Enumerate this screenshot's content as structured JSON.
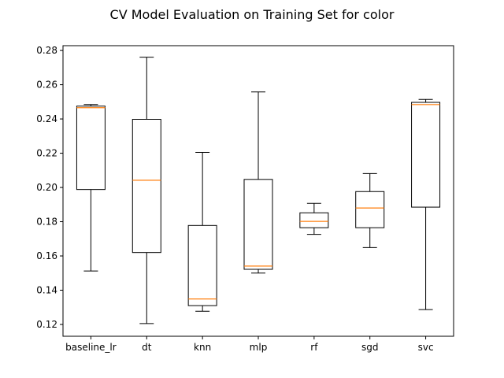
{
  "chart_data": {
    "type": "box",
    "title": "CV Model Evaluation on Training Set for color",
    "xlabel": "",
    "ylabel": "",
    "categories": [
      "baseline_lr",
      "dt",
      "knn",
      "mlp",
      "rf",
      "sgd",
      "svc"
    ],
    "ylim": [
      0.1131,
      0.2828
    ],
    "yticks": [
      0.12,
      0.14,
      0.16,
      0.18,
      0.2,
      0.22,
      0.24,
      0.26,
      0.28
    ],
    "ytick_labels": [
      "0.12",
      "0.14",
      "0.16",
      "0.18",
      "0.20",
      "0.22",
      "0.24",
      "0.26",
      "0.28"
    ],
    "boxes": [
      {
        "name": "baseline_lr",
        "whisker_low": 0.1512,
        "q1": 0.1988,
        "median": 0.2466,
        "q3": 0.2475,
        "whisker_high": 0.2484
      },
      {
        "name": "dt",
        "whisker_low": 0.1205,
        "q1": 0.162,
        "median": 0.2042,
        "q3": 0.2398,
        "whisker_high": 0.2761
      },
      {
        "name": "knn",
        "whisker_low": 0.1277,
        "q1": 0.131,
        "median": 0.1349,
        "q3": 0.1778,
        "whisker_high": 0.2205
      },
      {
        "name": "mlp",
        "whisker_low": 0.15,
        "q1": 0.1522,
        "median": 0.1541,
        "q3": 0.2047,
        "whisker_high": 0.2558
      },
      {
        "name": "rf",
        "whisker_low": 0.1726,
        "q1": 0.1765,
        "median": 0.1802,
        "q3": 0.1852,
        "whisker_high": 0.1907
      },
      {
        "name": "sgd",
        "whisker_low": 0.1649,
        "q1": 0.1765,
        "median": 0.188,
        "q3": 0.1976,
        "whisker_high": 0.2081
      },
      {
        "name": "svc",
        "whisker_low": 0.1287,
        "q1": 0.1885,
        "median": 0.2484,
        "q3": 0.2497,
        "whisker_high": 0.2514
      }
    ],
    "grid": false,
    "legend": "none",
    "colors": {
      "box": "#000000",
      "median": "#ff7f0e",
      "background": "#ffffff"
    }
  }
}
